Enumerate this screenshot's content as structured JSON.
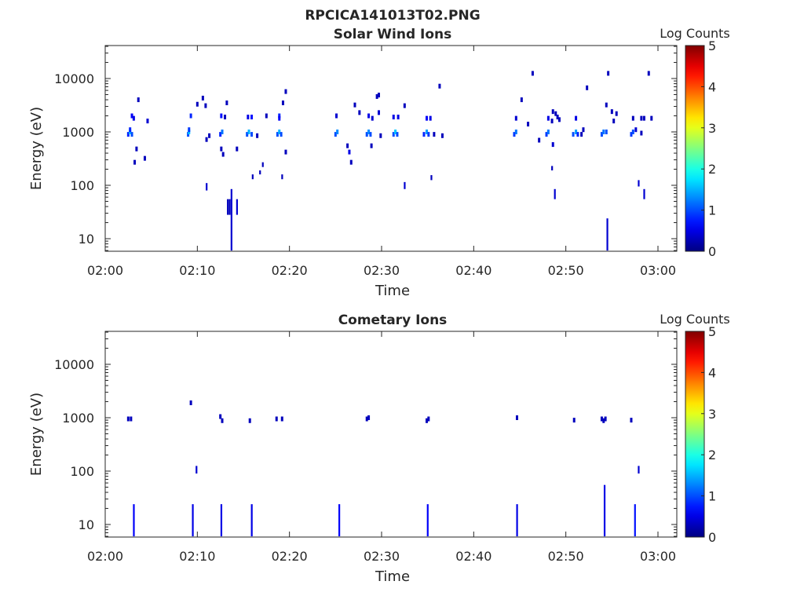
{
  "title": "RPCICA141013T02.PNG",
  "chart_data": [
    {
      "type": "heatmap",
      "title": "Solar Wind Ions",
      "xlabel": "Time",
      "ylabel": "Energy (eV)",
      "xlim_minutes": [
        0,
        62
      ],
      "ylim": [
        5.8,
        40000
      ],
      "yscale": "log",
      "xticks": [
        "02:00",
        "02:10",
        "02:20",
        "02:30",
        "02:40",
        "02:50",
        "03:00"
      ],
      "yticks": [
        "10",
        "100",
        "1000",
        "10000"
      ],
      "colorbar": {
        "label": "Log Counts",
        "range": [
          0,
          5
        ],
        "ticks": [
          "0",
          "1",
          "2",
          "3",
          "4",
          "5"
        ],
        "colormap": "jet"
      },
      "cells": [
        [
          2.5,
          900,
          0.8
        ],
        [
          2.7,
          1000,
          1.6
        ],
        [
          2.9,
          900,
          1.0
        ],
        [
          2.7,
          1100,
          0.8
        ],
        [
          2.9,
          2000,
          0.6
        ],
        [
          3.1,
          1800,
          0.5
        ],
        [
          3.4,
          480,
          0.3
        ],
        [
          3.2,
          270,
          0.3
        ],
        [
          3.6,
          4000,
          0.3
        ],
        [
          4.3,
          320,
          0.3
        ],
        [
          4.6,
          1600,
          0.4
        ],
        [
          9.0,
          900,
          1.0
        ],
        [
          9.1,
          1000,
          1.6
        ],
        [
          9.1,
          1100,
          0.9
        ],
        [
          9.3,
          2000,
          0.8
        ],
        [
          10.0,
          3300,
          0.3
        ],
        [
          10.6,
          4300,
          0.3
        ],
        [
          10.9,
          3100,
          0.3
        ],
        [
          11.3,
          850,
          0.3
        ],
        [
          11.0,
          720,
          0.3
        ],
        [
          12.5,
          900,
          0.8
        ],
        [
          12.7,
          1000,
          1.2
        ],
        [
          12.6,
          2000,
          0.7
        ],
        [
          12.6,
          480,
          0.3
        ],
        [
          12.8,
          380,
          0.3
        ],
        [
          13.2,
          3500,
          0.3
        ],
        [
          13.0,
          1900,
          0.3
        ],
        [
          14.3,
          480,
          0.3
        ],
        [
          15.4,
          900,
          1.0
        ],
        [
          15.6,
          1000,
          1.5
        ],
        [
          15.9,
          900,
          1.0
        ],
        [
          15.5,
          1900,
          0.5
        ],
        [
          15.9,
          1900,
          0.7
        ],
        [
          16.5,
          850,
          0.3
        ],
        [
          17.5,
          2000,
          0.3
        ],
        [
          18.7,
          900,
          1.0
        ],
        [
          18.9,
          1000,
          1.5
        ],
        [
          19.1,
          900,
          1.0
        ],
        [
          18.9,
          2000,
          0.8
        ],
        [
          18.9,
          1800,
          0.6
        ],
        [
          19.3,
          3500,
          0.3
        ],
        [
          19.6,
          5700,
          0.3
        ],
        [
          19.6,
          420,
          0.3
        ],
        [
          25.0,
          900,
          1.0
        ],
        [
          25.2,
          1000,
          1.3
        ],
        [
          25.1,
          2000,
          0.4
        ],
        [
          26.3,
          550,
          0.3
        ],
        [
          26.5,
          420,
          0.5
        ],
        [
          26.7,
          270,
          0.3
        ],
        [
          27.1,
          3200,
          0.3
        ],
        [
          27.6,
          2300,
          0.3
        ],
        [
          28.4,
          900,
          1.0
        ],
        [
          28.6,
          1000,
          1.3
        ],
        [
          28.8,
          900,
          1.0
        ],
        [
          28.6,
          2000,
          0.5
        ],
        [
          29.0,
          1800,
          0.4
        ],
        [
          28.9,
          550,
          0.3
        ],
        [
          29.5,
          4600,
          0.3
        ],
        [
          29.7,
          4900,
          0.3
        ],
        [
          29.7,
          2300,
          0.4
        ],
        [
          29.9,
          850,
          0.3
        ],
        [
          31.3,
          900,
          1.0
        ],
        [
          31.5,
          1000,
          1.6
        ],
        [
          31.7,
          900,
          1.0
        ],
        [
          31.3,
          1900,
          0.5
        ],
        [
          31.8,
          1900,
          0.5
        ],
        [
          32.5,
          3100,
          0.3
        ],
        [
          34.6,
          900,
          0.8
        ],
        [
          34.9,
          1000,
          1.4
        ],
        [
          35.1,
          900,
          0.9
        ],
        [
          34.9,
          1800,
          0.6
        ],
        [
          35.3,
          1800,
          0.5
        ],
        [
          35.7,
          900,
          0.3
        ],
        [
          36.6,
          850,
          0.3
        ],
        [
          36.3,
          7200,
          0.3
        ],
        [
          44.4,
          900,
          0.9
        ],
        [
          44.6,
          1000,
          1.2
        ],
        [
          44.6,
          1800,
          0.4
        ],
        [
          45.2,
          4000,
          0.3
        ],
        [
          45.9,
          1400,
          0.3
        ],
        [
          46.4,
          12500,
          0.3
        ],
        [
          47.1,
          700,
          0.3
        ],
        [
          47.9,
          900,
          0.9
        ],
        [
          48.1,
          1000,
          1.2
        ],
        [
          48.1,
          1800,
          0.5
        ],
        [
          48.5,
          1600,
          0.3
        ],
        [
          48.6,
          2400,
          0.3
        ],
        [
          48.9,
          2200,
          0.3
        ],
        [
          49.1,
          1900,
          0.3
        ],
        [
          49.3,
          1700,
          0.3
        ],
        [
          48.6,
          580,
          0.4
        ],
        [
          50.8,
          900,
          1.0
        ],
        [
          51.1,
          1000,
          1.4
        ],
        [
          51.3,
          900,
          0.8
        ],
        [
          51.1,
          1800,
          0.5
        ],
        [
          51.7,
          900,
          0.3
        ],
        [
          51.9,
          1100,
          0.3
        ],
        [
          52.3,
          6700,
          0.3
        ],
        [
          53.9,
          900,
          1.0
        ],
        [
          54.1,
          1000,
          1.2
        ],
        [
          54.4,
          1000,
          1.0
        ],
        [
          54.4,
          3200,
          0.3
        ],
        [
          54.6,
          12500,
          0.3
        ],
        [
          55.0,
          2400,
          0.3
        ],
        [
          55.2,
          1600,
          0.3
        ],
        [
          55.5,
          2200,
          0.3
        ],
        [
          57.1,
          900,
          0.9
        ],
        [
          57.3,
          1000,
          1.0
        ],
        [
          57.6,
          1100,
          0.4
        ],
        [
          57.3,
          1800,
          0.3
        ],
        [
          58.2,
          1800,
          0.3
        ],
        [
          58.5,
          1800,
          0.3
        ],
        [
          58.2,
          950,
          0.3
        ],
        [
          59.0,
          12500,
          0.3
        ],
        [
          59.3,
          1800,
          0.3
        ]
      ],
      "lines": [
        [
          11.0,
          80,
          110,
          0.4
        ],
        [
          13.3,
          28,
          55,
          0.3
        ],
        [
          13.5,
          28,
          55,
          0.3
        ],
        [
          13.7,
          6,
          85,
          0.4
        ],
        [
          14.3,
          28,
          55,
          0.4
        ],
        [
          16.0,
          130,
          160,
          0.3
        ],
        [
          16.8,
          160,
          190,
          0.3
        ],
        [
          17.1,
          220,
          270,
          0.3
        ],
        [
          19.2,
          130,
          160,
          0.3
        ],
        [
          32.5,
          85,
          115,
          0.4
        ],
        [
          35.4,
          125,
          155,
          0.3
        ],
        [
          48.5,
          190,
          230,
          0.3
        ],
        [
          48.8,
          55,
          85,
          0.4
        ],
        [
          54.5,
          6,
          24,
          0.4
        ],
        [
          57.9,
          95,
          125,
          0.4
        ],
        [
          58.5,
          55,
          85,
          0.4
        ]
      ]
    },
    {
      "type": "heatmap",
      "title": "Cometary Ions",
      "xlabel": "Time",
      "ylabel": "Energy (eV)",
      "xlim_minutes": [
        0,
        62
      ],
      "ylim": [
        5.8,
        40000
      ],
      "yscale": "log",
      "xticks": [
        "02:00",
        "02:10",
        "02:20",
        "02:30",
        "02:40",
        "02:50",
        "03:00"
      ],
      "yticks": [
        "10",
        "100",
        "1000",
        "10000"
      ],
      "colorbar": {
        "label": "Log Counts",
        "range": [
          0,
          5
        ],
        "ticks": [
          "0",
          "1",
          "2",
          "3",
          "4",
          "5"
        ],
        "colormap": "jet"
      },
      "cells": [
        [
          2.5,
          950,
          0.3
        ],
        [
          2.8,
          950,
          0.3
        ],
        [
          9.3,
          1900,
          0.3
        ],
        [
          12.5,
          1050,
          0.3
        ],
        [
          12.7,
          880,
          0.3
        ],
        [
          15.7,
          880,
          0.3
        ],
        [
          18.6,
          950,
          0.3
        ],
        [
          19.2,
          950,
          0.3
        ],
        [
          28.4,
          950,
          0.3
        ],
        [
          28.6,
          1000,
          0.3
        ],
        [
          34.9,
          880,
          0.3
        ],
        [
          35.1,
          950,
          0.3
        ],
        [
          44.7,
          1000,
          0.3
        ],
        [
          50.9,
          900,
          0.3
        ],
        [
          53.9,
          950,
          0.3
        ],
        [
          54.1,
          880,
          0.3
        ],
        [
          54.3,
          950,
          0.3
        ],
        [
          57.1,
          900,
          0.3
        ]
      ],
      "lines": [
        [
          3.1,
          6,
          24,
          0.6
        ],
        [
          9.5,
          6,
          24,
          0.5
        ],
        [
          9.9,
          90,
          125,
          0.4
        ],
        [
          12.6,
          6,
          24,
          0.5
        ],
        [
          15.9,
          6,
          24,
          0.5
        ],
        [
          25.4,
          6,
          24,
          0.6
        ],
        [
          35.0,
          6,
          24,
          0.6
        ],
        [
          44.7,
          6,
          24,
          0.5
        ],
        [
          54.2,
          6,
          55,
          0.5
        ],
        [
          57.5,
          6,
          24,
          0.7
        ],
        [
          57.9,
          90,
          125,
          0.4
        ]
      ]
    }
  ]
}
